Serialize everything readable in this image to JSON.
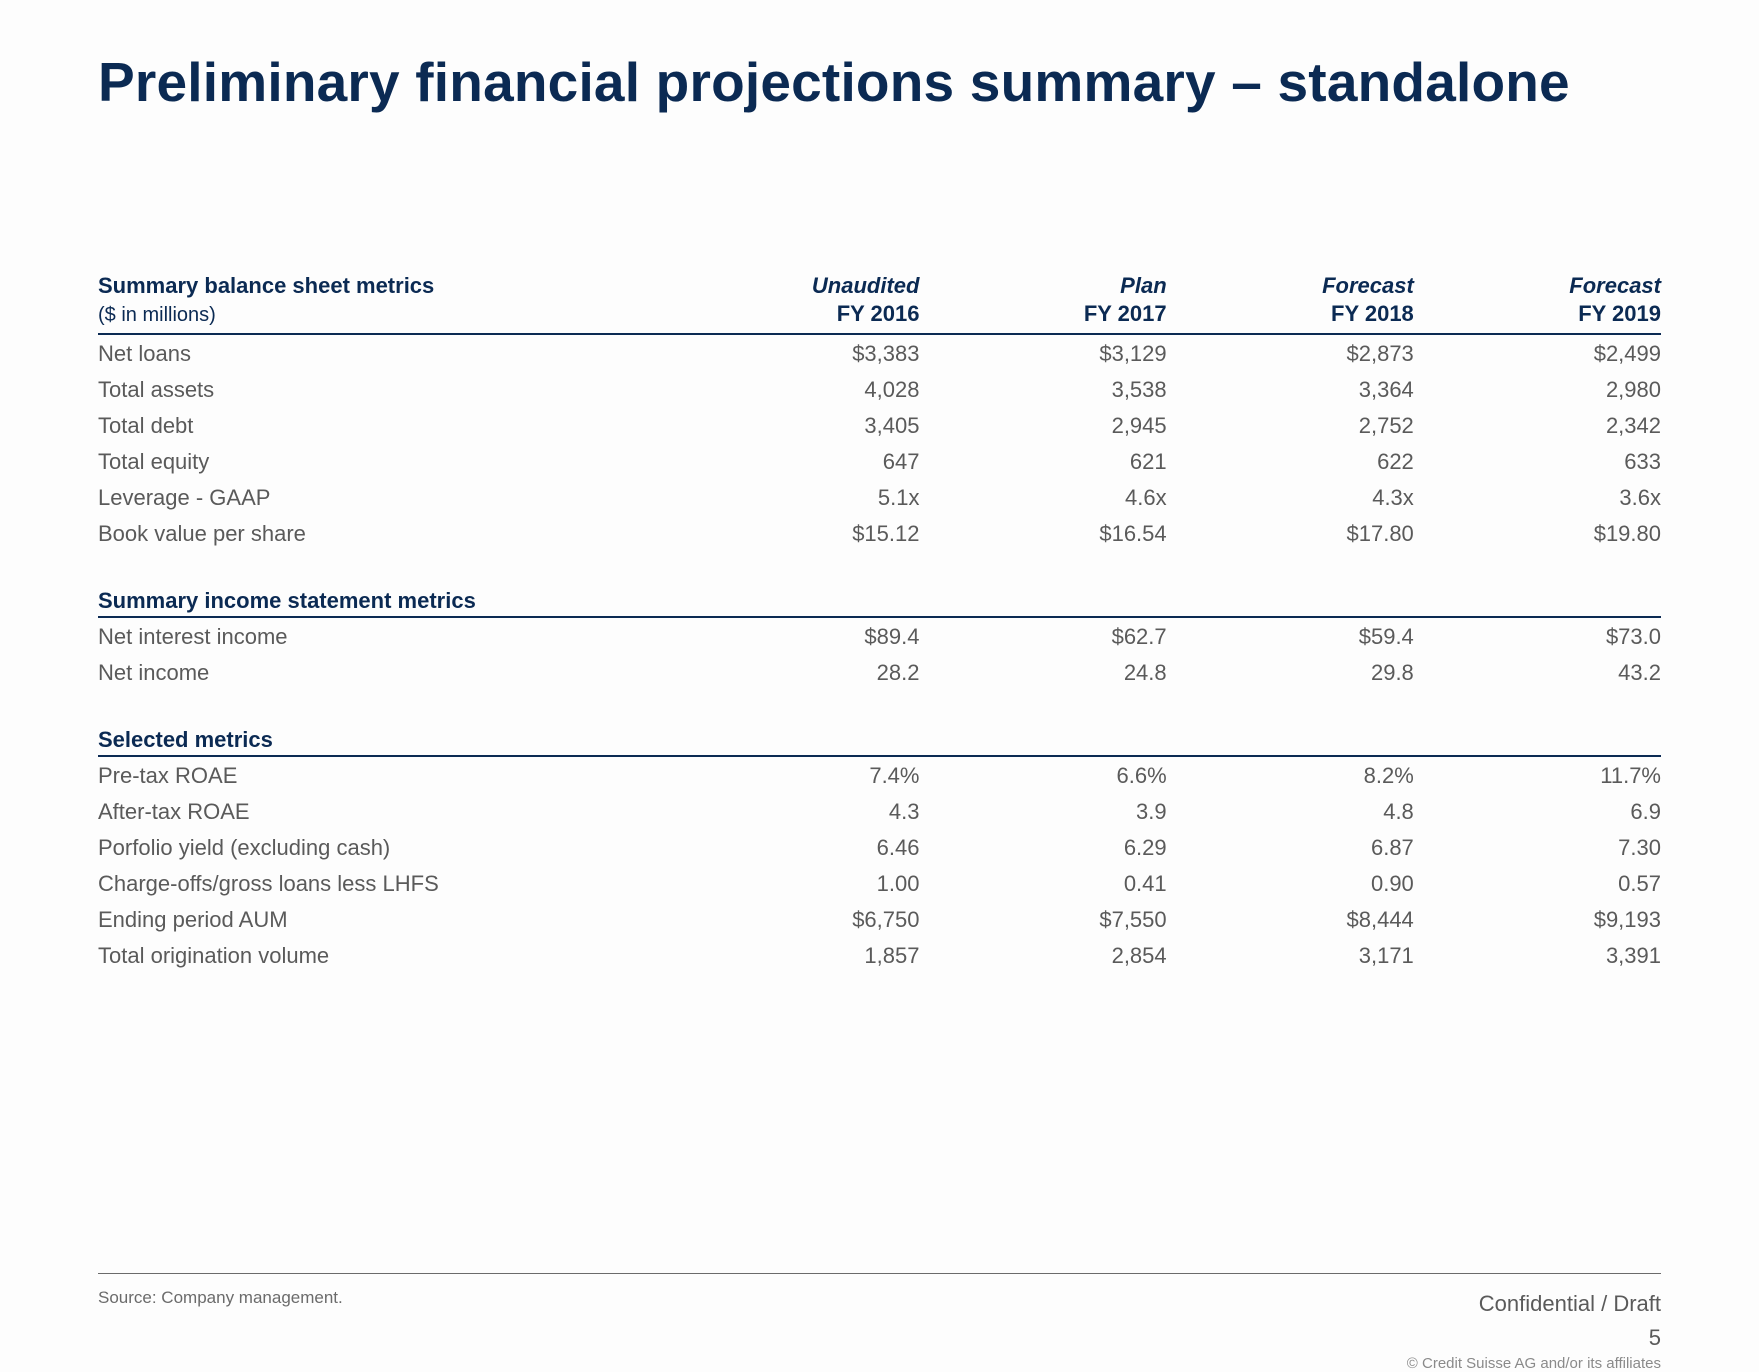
{
  "colors": {
    "brand_navy": "#0b2a53",
    "body_text": "#5a5a5a",
    "muted_text": "#8a8a8a",
    "rule": "#0b2a53",
    "footer_rule": "#6b6b6b",
    "background": "#fdfdfd"
  },
  "typography": {
    "title_pt": 55,
    "section_header_pt": 22,
    "body_pt": 22,
    "units_pt": 20,
    "footer_pt": 17,
    "copyright_pt": 15,
    "font_family": "Arial"
  },
  "title": "Preliminary financial projections summary – standalone",
  "units_label": "($ in millions)",
  "columns": [
    {
      "type": "Unaudited",
      "fy": "FY 2016"
    },
    {
      "type": "Plan",
      "fy": "FY 2017"
    },
    {
      "type": "Forecast",
      "fy": "FY 2018"
    },
    {
      "type": "Forecast",
      "fy": "FY 2019"
    }
  ],
  "sections": [
    {
      "name": "Summary balance sheet metrics",
      "show_column_headers": true,
      "rows": [
        {
          "label": "Net loans",
          "values": [
            "$3,383",
            "$3,129",
            "$2,873",
            "$2,499"
          ]
        },
        {
          "label": "Total assets",
          "values": [
            "4,028",
            "3,538",
            "3,364",
            "2,980"
          ]
        },
        {
          "label": "Total debt",
          "values": [
            "3,405",
            "2,945",
            "2,752",
            "2,342"
          ]
        },
        {
          "label": "Total equity",
          "values": [
            "647",
            "621",
            "622",
            "633"
          ]
        },
        {
          "label": "Leverage - GAAP",
          "values": [
            "5.1x",
            "4.6x",
            "4.3x",
            "3.6x"
          ]
        },
        {
          "label": "Book value per share",
          "values": [
            "$15.12",
            "$16.54",
            "$17.80",
            "$19.80"
          ]
        }
      ]
    },
    {
      "name": "Summary income statement metrics",
      "show_column_headers": false,
      "rows": [
        {
          "label": "Net interest income",
          "values": [
            "$89.4",
            "$62.7",
            "$59.4",
            "$73.0"
          ]
        },
        {
          "label": "Net income",
          "values": [
            "28.2",
            "24.8",
            "29.8",
            "43.2"
          ]
        }
      ]
    },
    {
      "name": "Selected metrics",
      "show_column_headers": false,
      "rows": [
        {
          "label": "Pre-tax ROAE",
          "values": [
            "7.4%",
            "6.6%",
            "8.2%",
            "11.7%"
          ]
        },
        {
          "label": "After-tax ROAE",
          "values": [
            "4.3",
            "3.9",
            "4.8",
            "6.9"
          ]
        },
        {
          "label": "Porfolio yield (excluding cash)",
          "values": [
            "6.46",
            "6.29",
            "6.87",
            "7.30"
          ]
        },
        {
          "label": "Charge-offs/gross loans less LHFS",
          "values": [
            "1.00",
            "0.41",
            "0.90",
            "0.57"
          ]
        },
        {
          "label": "Ending period AUM",
          "values": [
            "$6,750",
            "$7,550",
            "$8,444",
            "$9,193"
          ]
        },
        {
          "label": "Total origination volume",
          "values": [
            "1,857",
            "2,854",
            "3,171",
            "3,391"
          ]
        }
      ]
    }
  ],
  "footer": {
    "source": "Source:  Company management.",
    "confidential": "Confidential / Draft",
    "page": "5",
    "copyright": "© Credit Suisse AG and/or its affiliates"
  }
}
